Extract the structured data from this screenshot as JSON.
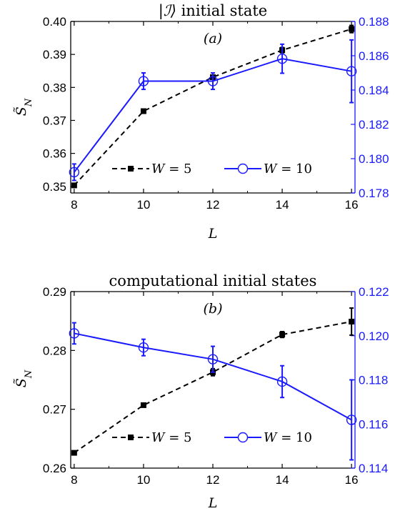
{
  "chart_data": [
    {
      "type": "line",
      "panel": "(a)",
      "title": "|ℐ⟩ initial state",
      "xlabel": "L",
      "ylabel_left": "S̃N",
      "x": [
        8,
        10,
        12,
        14,
        16
      ],
      "xticks": [
        "8",
        "10",
        "12",
        "14",
        "16"
      ],
      "xlim": [
        7.9,
        16.1
      ],
      "left_axis": {
        "ylim": [
          0.348,
          0.4
        ],
        "ticks": [
          0.35,
          0.36,
          0.37,
          0.38,
          0.39,
          0.4
        ],
        "tick_labels": [
          "0.35",
          "0.36",
          "0.37",
          "0.38",
          "0.39",
          "0.40"
        ],
        "color": "#000000"
      },
      "right_axis": {
        "ylim": [
          0.178,
          0.188
        ],
        "ticks": [
          0.178,
          0.18,
          0.182,
          0.184,
          0.186,
          0.188
        ],
        "tick_labels": [
          "0.178",
          "0.180",
          "0.182",
          "0.184",
          "0.186",
          "0.188"
        ],
        "color": "#1a1aff"
      },
      "series": [
        {
          "name": "W = 5",
          "axis": "left",
          "color": "#000000",
          "dash": true,
          "marker": "square",
          "values": [
            0.3503,
            0.3728,
            0.3831,
            0.3913,
            0.3977
          ],
          "err": [
            0.0002,
            0.0002,
            0.0006,
            0.0008,
            0.0011
          ]
        },
        {
          "name": "W = 10",
          "axis": "left",
          "color": "#1a1aff",
          "dash": false,
          "marker": "circle",
          "values": [
            0.3543,
            0.3819,
            0.3819,
            0.3887,
            0.3849
          ],
          "err": [
            0.0025,
            0.0025,
            0.0025,
            0.0044,
            0.0095
          ]
        }
      ],
      "legend": "bottom"
    },
    {
      "type": "line",
      "panel": "(b)",
      "title": "computational initial states",
      "xlabel": "L",
      "ylabel_left": "S̃N",
      "x": [
        8,
        10,
        12,
        14,
        16
      ],
      "xticks": [
        "8",
        "10",
        "12",
        "14",
        "16"
      ],
      "xlim": [
        7.9,
        16.1
      ],
      "left_axis": {
        "ylim": [
          0.26,
          0.29
        ],
        "ticks": [
          0.26,
          0.27,
          0.28,
          0.29
        ],
        "tick_labels": [
          "0.26",
          "0.27",
          "0.28",
          "0.29"
        ],
        "color": "#000000"
      },
      "right_axis": {
        "ylim": [
          0.114,
          0.122
        ],
        "ticks": [
          0.114,
          0.116,
          0.118,
          0.12,
          0.122
        ],
        "tick_labels": [
          "0.114",
          "0.116",
          "0.118",
          "0.120",
          "0.122"
        ],
        "color": "#1a1aff"
      },
      "series": [
        {
          "name": "W = 5",
          "axis": "left",
          "color": "#000000",
          "dash": true,
          "marker": "square",
          "values": [
            0.2626,
            0.2707,
            0.2763,
            0.2827,
            0.2849
          ],
          "err": [
            0.0002,
            0.0002,
            0.0006,
            0.0005,
            0.0023
          ]
        },
        {
          "name": "W = 10",
          "axis": "left",
          "color": "#1a1aff",
          "dash": false,
          "marker": "circle",
          "values": [
            0.2829,
            0.2805,
            0.2785,
            0.2747,
            0.2682
          ],
          "err": [
            0.0018,
            0.0014,
            0.0022,
            0.0027,
            0.0068
          ]
        }
      ],
      "legend": "bottom"
    }
  ]
}
